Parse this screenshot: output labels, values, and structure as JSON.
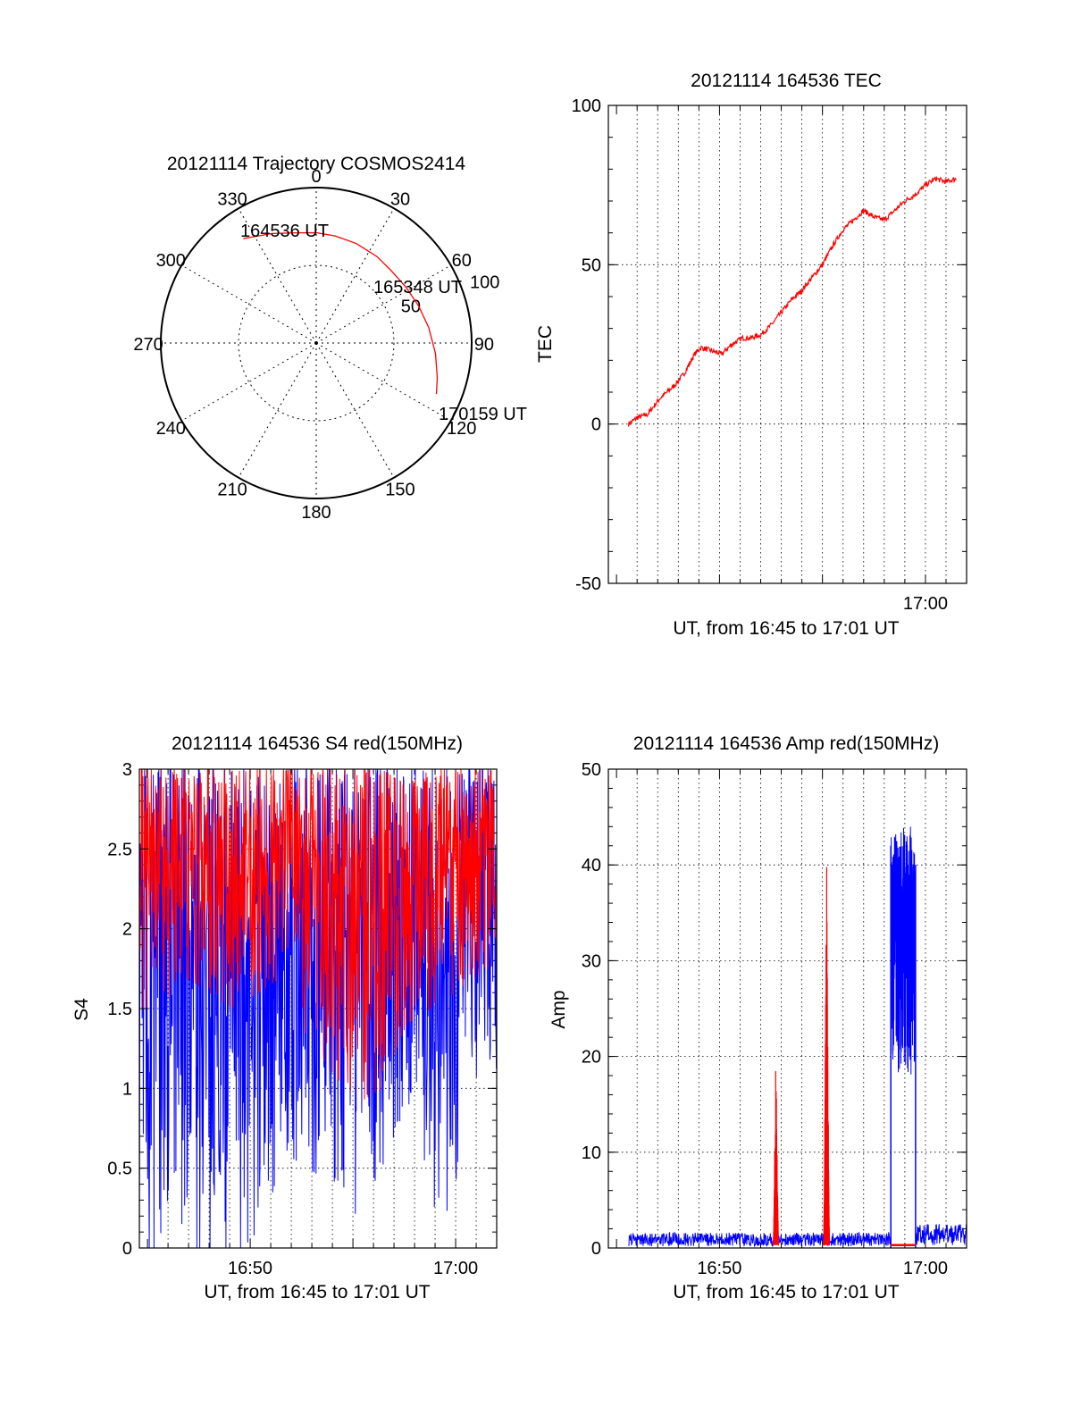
{
  "chart_data": [
    {
      "type": "polar",
      "title": "20121114 Trajectory COSMOS2414",
      "azimuth_labels": [
        "0",
        "30",
        "60",
        "90",
        "120",
        "150",
        "180",
        "210",
        "240",
        "270",
        "300",
        "330"
      ],
      "radial_labels": [
        "50",
        "100"
      ],
      "trajectory": {
        "color": "#ff0000",
        "points": [
          {
            "az": 325,
            "r": 82
          },
          {
            "az": 338,
            "r": 76
          },
          {
            "az": 350,
            "r": 72
          },
          {
            "az": 0,
            "r": 71
          },
          {
            "az": 10,
            "r": 70
          },
          {
            "az": 22,
            "r": 69
          },
          {
            "az": 35,
            "r": 68
          },
          {
            "az": 46,
            "r": 67
          },
          {
            "az": 58,
            "r": 68
          },
          {
            "az": 70,
            "r": 70
          },
          {
            "az": 82,
            "r": 73
          },
          {
            "az": 95,
            "r": 77
          },
          {
            "az": 106,
            "r": 81
          },
          {
            "az": 113,
            "r": 84
          }
        ]
      },
      "annotations": [
        "164536 UT",
        "165348 UT",
        "170159 UT"
      ]
    },
    {
      "type": "line",
      "title": "20121114 164536 TEC",
      "xlabel": "UT, from 16:45 to 17:01 UT",
      "ylabel": "TEC",
      "xlim": [
        16.7434,
        17.0333
      ],
      "ylim": [
        -50,
        100
      ],
      "x_tick_labels": [
        {
          "x": 17.0,
          "label": "17:00"
        }
      ],
      "y_tick_labels": [
        "-50",
        "0",
        "50",
        "100"
      ],
      "grid": true,
      "series": [
        {
          "color": "#ff0000",
          "x": [
            16.7597,
            16.7667,
            16.775,
            16.785,
            16.7967,
            16.805,
            16.8133,
            16.8183,
            16.8267,
            16.835,
            16.8433,
            16.8517,
            16.8583,
            16.8667,
            16.875,
            16.8833,
            16.8917,
            16.9,
            16.9083,
            16.9167,
            16.925,
            16.9333,
            16.9417,
            16.95,
            16.9583,
            16.9667,
            16.975,
            16.9833,
            16.9917,
            17.0,
            17.0083,
            17.0167,
            17.025
          ],
          "values": [
            0,
            2,
            3,
            8,
            12,
            16,
            22,
            24,
            23,
            22,
            25,
            27,
            27,
            28,
            31,
            35,
            39,
            42,
            46,
            50,
            56,
            61,
            64,
            67,
            65,
            64,
            67,
            70,
            72,
            75,
            77,
            76,
            77
          ]
        }
      ]
    },
    {
      "type": "line",
      "title": "20121114 164536 S4 red(150MHz)",
      "xlabel": "UT, from 16:45 to 17:01 UT",
      "ylabel": "S4",
      "xlim": [
        16.7434,
        17.0333
      ],
      "ylim": [
        0,
        3
      ],
      "x_tick_labels": [
        {
          "x": 16.8333,
          "label": "16:50"
        },
        {
          "x": 17.0,
          "label": "17:00"
        }
      ],
      "y_tick_labels": [
        "0",
        "0.5",
        "1",
        "1.5",
        "2",
        "2.5",
        "3"
      ],
      "grid": true,
      "series": [
        {
          "color": "#0000ff",
          "envelope_x": [
            16.7434,
            16.76,
            16.78,
            16.8,
            16.82,
            16.84,
            16.86,
            16.88,
            16.9,
            16.92,
            16.94,
            16.96,
            16.97,
            16.98,
            16.99,
            17.0,
            17.01,
            17.02,
            17.0333
          ],
          "envelope_low": [
            0.0,
            0.0,
            0.0,
            0.0,
            0.0,
            0.0,
            0.6,
            0.5,
            0.4,
            0.2,
            0.5,
            0.9,
            0.9,
            0.15,
            0.15,
            0.15,
            1.0,
            1.1,
            1.1
          ],
          "envelope_high": [
            3.0,
            3.0,
            3.0,
            3.0,
            3.0,
            3.0,
            3.0,
            3.0,
            3.0,
            3.0,
            3.0,
            3.0,
            3.0,
            3.0,
            3.0,
            3.0,
            3.0,
            3.0,
            3.0
          ]
        },
        {
          "color": "#ff0000",
          "envelope_x": [
            16.7434,
            16.76,
            16.78,
            16.8,
            16.82,
            16.84,
            16.86,
            16.88,
            16.9,
            16.92,
            16.94,
            16.96,
            16.98,
            17.0,
            17.02,
            17.0333
          ],
          "envelope_low": [
            1.5,
            1.5,
            1.7,
            1.6,
            1.5,
            1.6,
            1.7,
            1.3,
            1.1,
            0.9,
            1.0,
            1.4,
            1.5,
            1.6,
            1.7,
            1.8
          ],
          "envelope_high": [
            3.0,
            3.0,
            3.0,
            3.0,
            3.0,
            3.0,
            3.0,
            3.0,
            3.0,
            3.0,
            3.0,
            2.9,
            3.0,
            3.0,
            3.0,
            3.0
          ]
        }
      ]
    },
    {
      "type": "line",
      "title": "20121114 164536 Amp red(150MHz)",
      "xlabel": "UT, from 16:45 to 17:01 UT",
      "ylabel": "Amp",
      "xlim": [
        16.7434,
        17.0333
      ],
      "ylim": [
        0,
        50
      ],
      "x_tick_labels": [
        {
          "x": 16.8333,
          "label": "16:50"
        },
        {
          "x": 17.0,
          "label": "17:00"
        }
      ],
      "y_tick_labels": [
        "0",
        "10",
        "20",
        "30",
        "40",
        "50"
      ],
      "grid": true,
      "series": [
        {
          "color": "#0000ff",
          "baseline_x": [
            16.76,
            16.972
          ],
          "baseline_low": 0.2,
          "baseline_high": 1.6,
          "burst_x": [
            16.972,
            16.992
          ],
          "burst_low": 18.0,
          "burst_high": 44.0,
          "tail_x": [
            16.992,
            17.0333
          ],
          "tail_low": 0.3,
          "tail_high": 2.5
        },
        {
          "color": "#ff0000",
          "spikes": [
            {
              "x": 16.879,
              "width": 0.0045,
              "peak": 20.5
            },
            {
              "x": 16.92,
              "width": 0.005,
              "peak": 41.5
            }
          ],
          "flat_x": [
            16.972,
            16.992
          ],
          "flat_value": 0.3
        }
      ]
    }
  ]
}
